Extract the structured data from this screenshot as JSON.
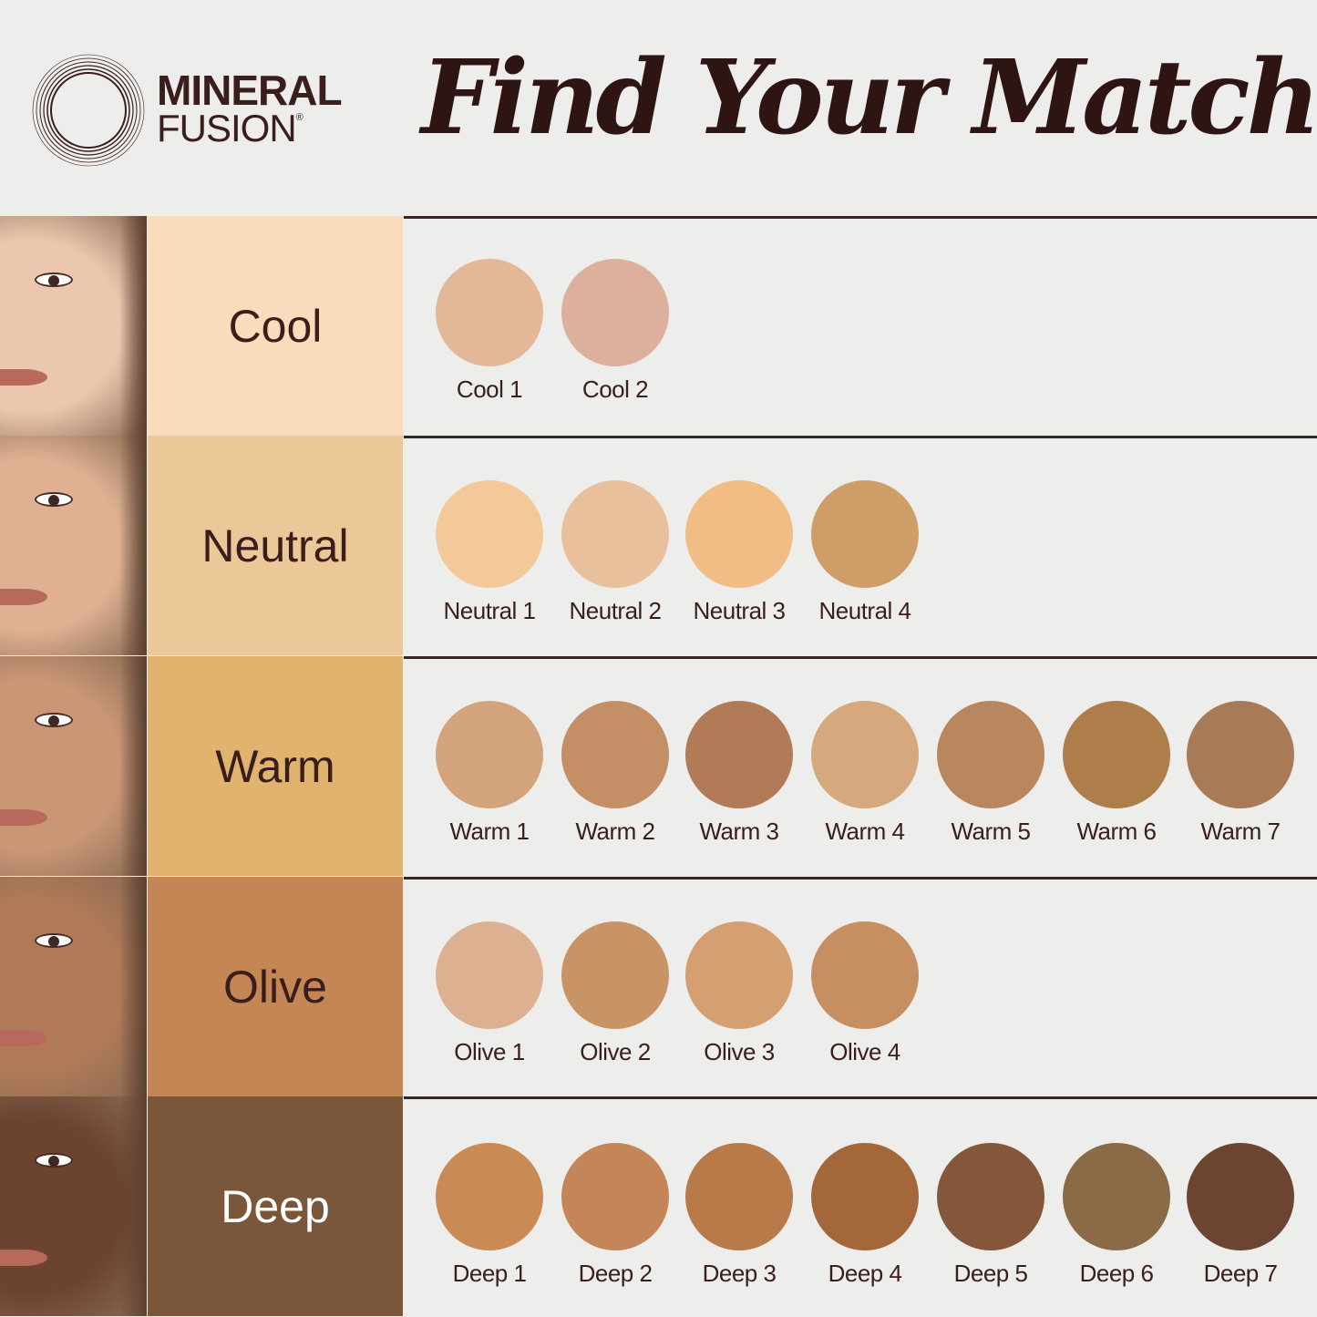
{
  "brand": {
    "line1": "MINERAL",
    "line2": "FUSION",
    "mark": "®"
  },
  "title": "Find Your Match",
  "rows": [
    {
      "name": "Cool",
      "bg": "#f8dcbb",
      "text_color": "#3a1e1b",
      "skin": "#ecc7b0",
      "shades": [
        {
          "label": "Cool 1",
          "color": "#e3b898"
        },
        {
          "label": "Cool 2",
          "color": "#dcb09c"
        }
      ]
    },
    {
      "name": "Neutral",
      "bg": "#ecc797",
      "text_color": "#3a1e1b",
      "skin": "#dfb192",
      "shades": [
        {
          "label": "Neutral 1",
          "color": "#f3c99a"
        },
        {
          "label": "Neutral 2",
          "color": "#e8c19c"
        },
        {
          "label": "Neutral 3",
          "color": "#f2bd84"
        },
        {
          "label": "Neutral 4",
          "color": "#cf9e68"
        }
      ]
    },
    {
      "name": "Warm",
      "bg": "#e0b46f",
      "text_color": "#3a1e1b",
      "skin": "#c99676",
      "shades": [
        {
          "label": "Warm 1",
          "color": "#d3a47c"
        },
        {
          "label": "Warm 2",
          "color": "#c48e66"
        },
        {
          "label": "Warm 3",
          "color": "#b07b56"
        },
        {
          "label": "Warm 4",
          "color": "#d6a87e"
        },
        {
          "label": "Warm 5",
          "color": "#b8875e"
        },
        {
          "label": "Warm 6",
          "color": "#ad7d4a"
        },
        {
          "label": "Warm 7",
          "color": "#a87a56"
        }
      ]
    },
    {
      "name": "Olive",
      "bg": "#c48655",
      "text_color": "#3a1e1b",
      "skin": "#b07a58",
      "shades": [
        {
          "label": "Olive 1",
          "color": "#dcb090"
        },
        {
          "label": "Olive 2",
          "color": "#c99465"
        },
        {
          "label": "Olive 3",
          "color": "#d4a071"
        },
        {
          "label": "Olive 4",
          "color": "#c68f62"
        }
      ]
    },
    {
      "name": "Deep",
      "bg": "#7a573b",
      "text_color": "#ffffff",
      "skin": "#6b4330",
      "shades": [
        {
          "label": "Deep 1",
          "color": "#c98a55"
        },
        {
          "label": "Deep 2",
          "color": "#c48558"
        },
        {
          "label": "Deep 3",
          "color": "#b87a48"
        },
        {
          "label": "Deep 4",
          "color": "#a4673a"
        },
        {
          "label": "Deep 5",
          "color": "#85573a"
        },
        {
          "label": "Deep 6",
          "color": "#8a6a47"
        },
        {
          "label": "Deep 7",
          "color": "#6b4532"
        }
      ]
    }
  ]
}
